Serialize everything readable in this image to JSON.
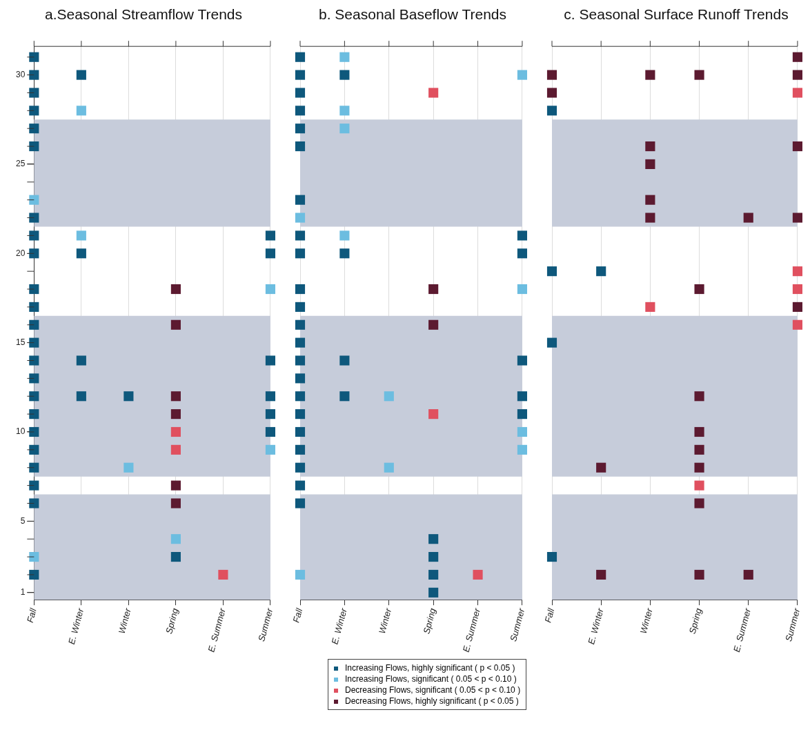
{
  "chart_data": [
    {
      "type": "scatter",
      "title": "a.Seasonal Streamflow Trends",
      "categories": [
        "Fall",
        "E. Winter",
        "Winter",
        "Spring",
        "E. Summer",
        "Summer"
      ],
      "ylim": [
        0.6,
        31.6
      ],
      "yticks": [
        1,
        {
          "value": 2,
          "label": null
        },
        {
          "value": 3,
          "label": null
        },
        {
          "value": 4,
          "label": null
        },
        5,
        {
          "value": 6,
          "label": null
        },
        {
          "value": 7,
          "label": null
        },
        {
          "value": 8,
          "label": null
        },
        {
          "value": 9,
          "label": null
        },
        10,
        {
          "value": 11,
          "label": null
        },
        {
          "value": 12,
          "label": null
        },
        {
          "value": 13,
          "label": null
        },
        {
          "value": 14,
          "label": null
        },
        15,
        {
          "value": 16,
          "label": null
        },
        {
          "value": 17,
          "label": null
        },
        {
          "value": 18,
          "label": null
        },
        {
          "value": 19,
          "label": null
        },
        20,
        {
          "value": 21,
          "label": null
        },
        {
          "value": 22,
          "label": null
        },
        {
          "value": 23,
          "label": null
        },
        {
          "value": 24,
          "label": null
        },
        25,
        {
          "value": 26,
          "label": null
        },
        {
          "value": 27,
          "label": null
        },
        {
          "value": 28,
          "label": null
        },
        {
          "value": 29,
          "label": null
        },
        30,
        {
          "value": 31,
          "label": null
        }
      ],
      "bands": [
        {
          "axis": "y",
          "from": 0.6,
          "to": 6.5,
          "color": "#c6ccda"
        },
        {
          "axis": "y",
          "from": 7.5,
          "to": 16.5,
          "color": "#c6ccda"
        },
        {
          "axis": "y",
          "from": 21.5,
          "to": 27.5,
          "color": "#c6ccda"
        }
      ],
      "grid": "x",
      "marker": "square",
      "legend": false,
      "series": [
        {
          "color": "#0e587c",
          "x": [
            "Fall",
            "Fall",
            "Fall",
            "Fall",
            "Fall",
            "Fall",
            "Fall",
            "Fall",
            "Fall",
            "Fall",
            "Fall",
            "Fall",
            "Fall",
            "Fall",
            "Fall",
            "Fall",
            "Fall",
            "Fall",
            "Fall",
            "Fall",
            "Fall",
            "Fall",
            "Fall",
            "E. Winter",
            "E. Winter",
            "E. Winter",
            "E. Winter",
            "Winter",
            "Spring",
            "Summer",
            "Summer",
            "Summer",
            "Summer",
            "Summer",
            "Summer"
          ],
          "values": [
            31,
            30,
            29,
            28,
            27,
            26,
            22,
            21,
            20,
            18,
            17,
            16,
            15,
            14,
            13,
            12,
            11,
            10,
            9,
            8,
            7,
            6,
            2,
            30,
            20,
            14,
            12,
            12,
            3,
            21,
            20,
            14,
            12,
            11,
            10
          ]
        },
        {
          "color": "#6cbde0",
          "x": [
            "Fall",
            "Fall",
            "E. Winter",
            "E. Winter",
            "Winter",
            "Spring",
            "Summer",
            "Summer"
          ],
          "values": [
            23,
            3,
            28,
            21,
            8,
            4,
            18,
            9
          ]
        },
        {
          "color": "#e0505f",
          "x": [
            "Spring",
            "Spring",
            "E. Summer"
          ],
          "values": [
            10,
            9,
            2
          ]
        },
        {
          "color": "#5c1a30",
          "x": [
            "Spring",
            "Spring",
            "Spring",
            "Spring",
            "Spring",
            "Spring"
          ],
          "values": [
            18,
            16,
            12,
            11,
            7,
            6
          ]
        }
      ]
    },
    {
      "type": "scatter",
      "title": "b. Seasonal Baseflow Trends",
      "categories": [
        "Fall",
        "E. Winter",
        "Winter",
        "Spring",
        "E. Summer",
        "Summer"
      ],
      "ylim": [
        0.6,
        31.6
      ],
      "tick_labels": "x",
      "bands": [
        {
          "axis": "y",
          "from": 0.6,
          "to": 6.5,
          "color": "#c6ccda"
        },
        {
          "axis": "y",
          "from": 7.5,
          "to": 16.5,
          "color": "#c6ccda"
        },
        {
          "axis": "y",
          "from": 21.5,
          "to": 27.5,
          "color": "#c6ccda"
        }
      ],
      "grid": "x",
      "marker": "square",
      "legend": "bottom",
      "series": [
        {
          "name": "Increasing Flows, highly significant ( p < 0.05 )",
          "color": "#0e587c",
          "x": [
            "Fall",
            "Fall",
            "Fall",
            "Fall",
            "Fall",
            "Fall",
            "Fall",
            "Fall",
            "Fall",
            "Fall",
            "Fall",
            "Fall",
            "Fall",
            "Fall",
            "Fall",
            "Fall",
            "Fall",
            "Fall",
            "Fall",
            "Fall",
            "Fall",
            "Fall",
            "E. Winter",
            "E. Winter",
            "E. Winter",
            "E. Winter",
            "Spring",
            "Spring",
            "Spring",
            "Spring",
            "Summer",
            "Summer",
            "Summer",
            "Summer",
            "Summer"
          ],
          "values": [
            31,
            30,
            29,
            28,
            27,
            26,
            23,
            21,
            20,
            18,
            17,
            16,
            15,
            14,
            13,
            12,
            11,
            10,
            9,
            8,
            7,
            6,
            30,
            20,
            14,
            12,
            4,
            3,
            2,
            1,
            21,
            20,
            14,
            12,
            11
          ]
        },
        {
          "name": "Increasing Flows, significant ( 0.05 < p < 0.10 )",
          "color": "#6cbde0",
          "x": [
            "Fall",
            "Fall",
            "E. Winter",
            "E. Winter",
            "E. Winter",
            "E. Winter",
            "Winter",
            "Winter",
            "Summer",
            "Summer",
            "Summer",
            "Summer"
          ],
          "values": [
            22,
            2,
            31,
            28,
            27,
            21,
            12,
            8,
            30,
            18,
            10,
            9
          ]
        },
        {
          "name": "Decreasing Flows, significant ( 0.05 < p < 0.10 )",
          "color": "#e0505f",
          "x": [
            "Spring",
            "Spring",
            "E. Summer"
          ],
          "values": [
            29,
            11,
            2
          ]
        },
        {
          "name": "Decreasing Flows, highly significant ( p < 0.05 )",
          "color": "#5c1a30",
          "x": [
            "Spring",
            "Spring"
          ],
          "values": [
            18,
            16
          ]
        }
      ]
    },
    {
      "type": "scatter",
      "title": "c. Seasonal Surface Runoff Trends",
      "categories": [
        "Fall",
        "E. Winter",
        "Winter",
        "Spring",
        "E. Summer",
        "Summer"
      ],
      "ylim": [
        0.6,
        31.6
      ],
      "tick_labels": "x",
      "bands": [
        {
          "axis": "y",
          "from": 0.6,
          "to": 6.5,
          "color": "#c6ccda"
        },
        {
          "axis": "y",
          "from": 7.5,
          "to": 16.5,
          "color": "#c6ccda"
        },
        {
          "axis": "y",
          "from": 21.5,
          "to": 27.5,
          "color": "#c6ccda"
        }
      ],
      "grid": "x",
      "marker": "square",
      "legend": false,
      "series": [
        {
          "color": "#0e587c",
          "x": [
            "Fall",
            "Fall",
            "Fall",
            "Fall",
            "E. Winter"
          ],
          "values": [
            28,
            19,
            15,
            3,
            19
          ]
        },
        {
          "color": "#e0505f",
          "x": [
            "Winter",
            "Spring",
            "Summer",
            "Summer",
            "Summer",
            "Summer"
          ],
          "values": [
            17,
            7,
            29,
            19,
            18,
            16
          ]
        },
        {
          "color": "#5c1a30",
          "x": [
            "Fall",
            "Fall",
            "E. Winter",
            "E. Winter",
            "Winter",
            "Winter",
            "Winter",
            "Winter",
            "Winter",
            "Spring",
            "Spring",
            "Spring",
            "Spring",
            "Spring",
            "Spring",
            "Spring",
            "Spring",
            "E. Summer",
            "E. Summer",
            "Summer",
            "Summer",
            "Summer",
            "Summer",
            "Summer"
          ],
          "values": [
            30,
            29,
            8,
            2,
            30,
            26,
            25,
            23,
            22,
            30,
            18,
            12,
            10,
            9,
            8,
            6,
            2,
            22,
            2,
            31,
            30,
            26,
            22,
            17
          ]
        }
      ]
    }
  ]
}
